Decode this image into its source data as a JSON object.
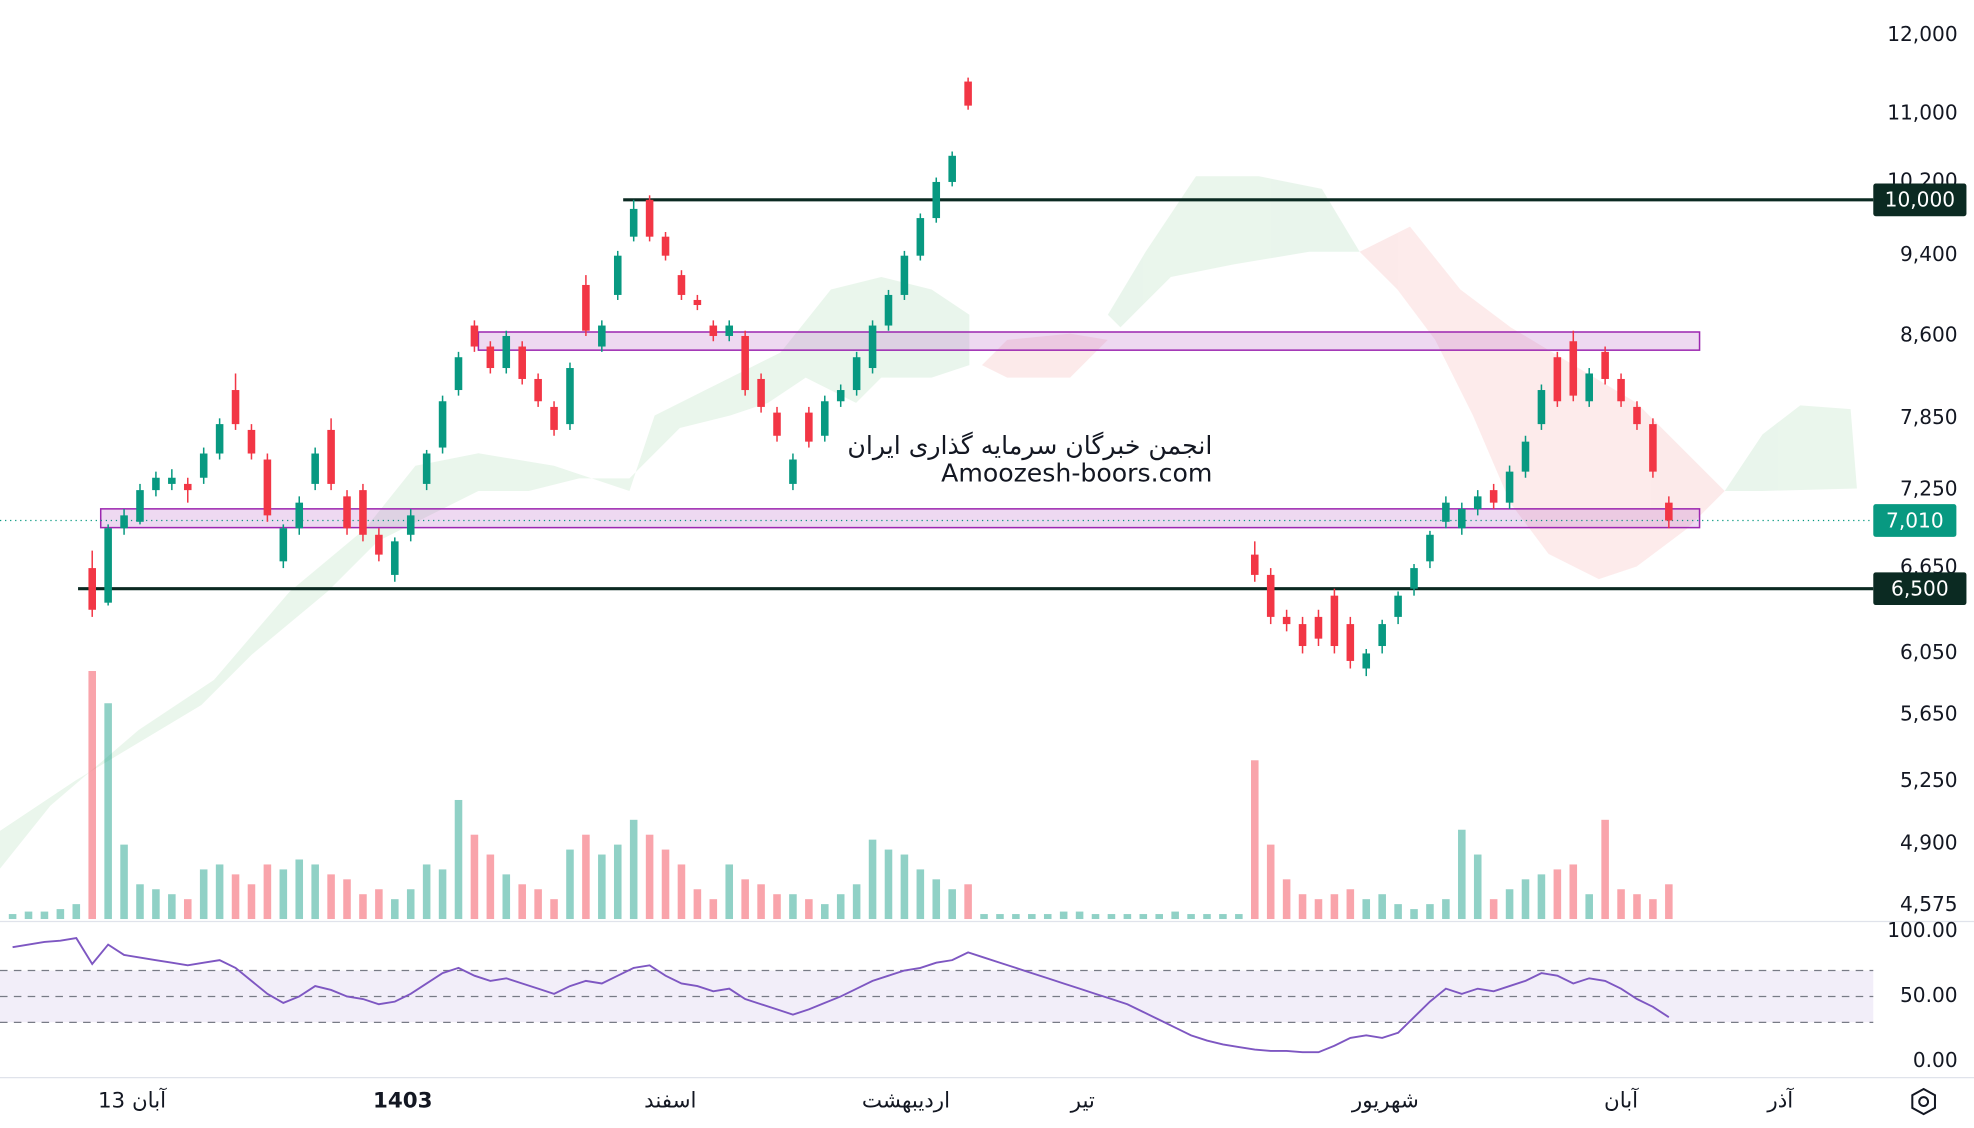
{
  "chart_data": {
    "type": "candlestick",
    "log_scale": true,
    "ylim": [
      4508,
      12478
    ],
    "yticks": [
      {
        "value": 12000,
        "label": "12,000"
      },
      {
        "value": 11000,
        "label": "11,000"
      },
      {
        "value": 10200,
        "label": "10,200"
      },
      {
        "value": 9400,
        "label": "9,400"
      },
      {
        "value": 8600,
        "label": "8,600"
      },
      {
        "value": 7850,
        "label": "7,850"
      },
      {
        "value": 7250,
        "label": "7,250"
      },
      {
        "value": 6650,
        "label": "6,650"
      },
      {
        "value": 6050,
        "label": "6,050"
      },
      {
        "value": 5650,
        "label": "5,650"
      },
      {
        "value": 5250,
        "label": "5,250"
      },
      {
        "value": 4900,
        "label": "4,900"
      },
      {
        "value": 4575,
        "label": "4,575"
      }
    ],
    "up_color": "#089981",
    "down_color": "#f23645",
    "levels": [
      {
        "value": 10000,
        "label": "10,000"
      },
      {
        "value": 6500,
        "label": "6,500"
      }
    ],
    "last_price": {
      "value": 7010,
      "label": "7,010"
    },
    "zones": [
      {
        "low": 8466,
        "high": 8638
      },
      {
        "low": 6955,
        "high": 7101
      }
    ],
    "watermark": [
      "انجمن خبرگان سرمایه گذاری ایران",
      "Amoozesh-boors.com"
    ],
    "x_labels": [
      {
        "label": "13 آبان",
        "at": 7.5
      },
      {
        "label": "1403",
        "at": 24.5
      },
      {
        "label": "اسفند",
        "at": 41.3
      },
      {
        "label": "اردیبهشت",
        "at": 56.1
      },
      {
        "label": "تیر",
        "at": 67.2
      },
      {
        "label": "شهریور",
        "at": 86.2
      },
      {
        "label": "آبان",
        "at": 101
      },
      {
        "label": "آذر",
        "at": 111
      }
    ],
    "candles": [
      null,
      null,
      null,
      null,
      null,
      [
        6650,
        6780,
        6300,
        6350
      ],
      [
        6400,
        6980,
        6380,
        6950
      ],
      [
        6950,
        7100,
        6900,
        7050
      ],
      [
        7000,
        7300,
        6980,
        7250
      ],
      [
        7250,
        7400,
        7200,
        7350
      ],
      [
        7300,
        7420,
        7250,
        7350
      ],
      [
        7300,
        7350,
        7150,
        7250
      ],
      [
        7350,
        7600,
        7300,
        7550
      ],
      [
        7550,
        7850,
        7500,
        7800
      ],
      [
        8100,
        8250,
        7750,
        7800
      ],
      [
        7750,
        7800,
        7500,
        7550
      ],
      [
        7500,
        7550,
        7000,
        7050
      ],
      [
        6700,
        6980,
        6650,
        6950
      ],
      [
        6950,
        7200,
        6900,
        7150
      ],
      [
        7300,
        7600,
        7250,
        7550
      ],
      [
        7750,
        7850,
        7250,
        7300
      ],
      [
        7200,
        7250,
        6900,
        6950
      ],
      [
        7250,
        7300,
        6850,
        6900
      ],
      [
        6900,
        6950,
        6700,
        6750
      ],
      [
        6600,
        6880,
        6550,
        6850
      ],
      [
        6900,
        7100,
        6850,
        7050
      ],
      [
        7300,
        7580,
        7250,
        7550
      ],
      [
        7600,
        8050,
        7550,
        8000
      ],
      [
        8100,
        8450,
        8050,
        8400
      ],
      [
        8700,
        8750,
        8450,
        8500
      ],
      [
        8500,
        8550,
        8250,
        8300
      ],
      [
        8300,
        8650,
        8250,
        8600
      ],
      [
        8500,
        8550,
        8150,
        8200
      ],
      [
        8200,
        8250,
        7950,
        8000
      ],
      [
        7950,
        8000,
        7700,
        7750
      ],
      [
        7800,
        8350,
        7750,
        8300
      ],
      [
        9100,
        9200,
        8600,
        8650
      ],
      [
        8500,
        8750,
        8450,
        8700
      ],
      [
        9000,
        9450,
        8950,
        9400
      ],
      [
        9600,
        10000,
        9550,
        9900
      ],
      [
        10000,
        10050,
        9550,
        9600
      ],
      [
        9600,
        9650,
        9350,
        9400
      ],
      [
        9200,
        9250,
        8950,
        9000
      ],
      [
        8950,
        9000,
        8850,
        8900
      ],
      [
        8700,
        8750,
        8550,
        8600
      ],
      [
        8600,
        8750,
        8550,
        8700
      ],
      [
        8600,
        8650,
        8050,
        8100
      ],
      [
        8200,
        8250,
        7900,
        7950
      ],
      [
        7900,
        7950,
        7650,
        7700
      ],
      [
        7300,
        7550,
        7250,
        7500
      ],
      [
        7900,
        7950,
        7600,
        7650
      ],
      [
        7700,
        8050,
        7650,
        8000
      ],
      [
        8000,
        8150,
        7950,
        8100
      ],
      [
        8100,
        8450,
        8050,
        8400
      ],
      [
        8300,
        8750,
        8250,
        8700
      ],
      [
        8700,
        9050,
        8650,
        9000
      ],
      [
        9000,
        9450,
        8950,
        9400
      ],
      [
        9400,
        9850,
        9350,
        9800
      ],
      [
        9800,
        10250,
        9750,
        10200
      ],
      [
        10200,
        10550,
        10150,
        10500
      ],
      [
        11400,
        11450,
        11050,
        11100
      ],
      null,
      null,
      null,
      null,
      null,
      null,
      null,
      null,
      null,
      null,
      null,
      null,
      null,
      null,
      null,
      null,
      null,
      [
        6750,
        6850,
        6550,
        6600
      ],
      [
        6600,
        6650,
        6250,
        6300
      ],
      [
        6300,
        6350,
        6200,
        6250
      ],
      [
        6250,
        6300,
        6050,
        6100
      ],
      [
        6300,
        6350,
        6100,
        6150
      ],
      [
        6450,
        6500,
        6050,
        6100
      ],
      [
        6250,
        6300,
        5950,
        6000
      ],
      [
        5950,
        6080,
        5900,
        6050
      ],
      [
        6100,
        6280,
        6050,
        6250
      ],
      [
        6300,
        6480,
        6250,
        6450
      ],
      [
        6500,
        6680,
        6450,
        6650
      ],
      [
        6700,
        6930,
        6650,
        6900
      ],
      [
        7000,
        7200,
        6950,
        7150
      ],
      [
        6950,
        7150,
        6900,
        7100
      ],
      [
        7100,
        7250,
        7050,
        7200
      ],
      [
        7250,
        7300,
        7100,
        7150
      ],
      [
        7150,
        7450,
        7100,
        7400
      ],
      [
        7400,
        7700,
        7350,
        7650
      ],
      [
        7800,
        8150,
        7750,
        8100
      ],
      [
        8400,
        8450,
        7950,
        8000
      ],
      [
        8550,
        8650,
        8000,
        8050
      ],
      [
        8000,
        8300,
        7950,
        8250
      ],
      [
        8450,
        8500,
        8150,
        8200
      ],
      [
        8200,
        8250,
        7950,
        8000
      ],
      [
        7950,
        8000,
        7750,
        7800
      ],
      [
        7800,
        7850,
        7350,
        7400
      ],
      [
        7150,
        7200,
        6950,
        7010
      ]
    ],
    "volume_ylim": [
      0,
      100
    ],
    "volumes": [
      2,
      3,
      3,
      4,
      6,
      100,
      87,
      30,
      14,
      12,
      10,
      8,
      20,
      22,
      18,
      14,
      22,
      20,
      24,
      22,
      18,
      16,
      10,
      12,
      8,
      12,
      22,
      20,
      48,
      34,
      26,
      18,
      14,
      12,
      8,
      28,
      34,
      26,
      30,
      40,
      34,
      28,
      22,
      12,
      8,
      22,
      16,
      14,
      10,
      10,
      8,
      6,
      10,
      14,
      32,
      28,
      26,
      20,
      16,
      12,
      14,
      2,
      2,
      2,
      2,
      2,
      3,
      3,
      2,
      2,
      2,
      2,
      2,
      3,
      2,
      2,
      2,
      2,
      64,
      30,
      16,
      10,
      8,
      10,
      12,
      8,
      10,
      6,
      4,
      6,
      8,
      36,
      26,
      8,
      12,
      16,
      18,
      20,
      22,
      10,
      40,
      12,
      10,
      8,
      14
    ],
    "rsi_ylim": [
      0,
      100
    ],
    "rsi_ticks": [
      {
        "value": 100,
        "label": "100.00"
      },
      {
        "value": 50,
        "label": "50.00"
      },
      {
        "value": 0,
        "label": "0.00"
      }
    ],
    "rsi_bands": [
      30,
      50,
      70
    ],
    "rsi_color": "#7e57c2",
    "rsi": [
      88,
      90,
      92,
      93,
      95,
      75,
      90,
      82,
      80,
      78,
      76,
      74,
      76,
      78,
      72,
      62,
      52,
      45,
      50,
      58,
      55,
      50,
      48,
      44,
      46,
      52,
      60,
      68,
      72,
      66,
      62,
      64,
      60,
      56,
      52,
      58,
      62,
      60,
      66,
      72,
      74,
      66,
      60,
      58,
      54,
      56,
      48,
      44,
      40,
      36,
      40,
      45,
      50,
      56,
      62,
      66,
      70,
      72,
      76,
      78,
      84,
      80,
      76,
      72,
      68,
      64,
      60,
      56,
      52,
      48,
      44,
      38,
      32,
      26,
      20,
      16,
      13,
      11,
      9,
      8,
      8,
      7,
      7,
      12,
      18,
      20,
      18,
      22,
      34,
      46,
      56,
      52,
      56,
      54,
      58,
      62,
      68,
      66,
      60,
      64,
      62,
      56,
      48,
      42,
      34
    ]
  }
}
